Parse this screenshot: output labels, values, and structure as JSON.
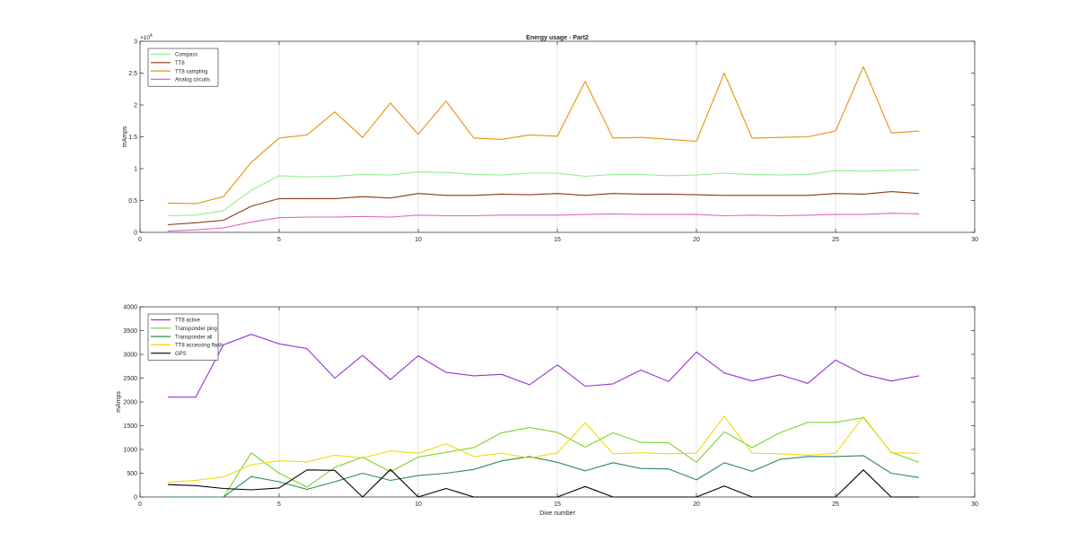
{
  "chart_data": [
    {
      "type": "line",
      "title": "Energy usage - Part2",
      "xlabel": "",
      "ylabel": "mAmps",
      "xlim": [
        0,
        30
      ],
      "ylim": [
        0,
        30000
      ],
      "y_exponent_label": "×10",
      "y_exponent_power": "4",
      "y_tick_scale": 10000,
      "x_ticks": [
        0,
        5,
        10,
        15,
        20,
        25,
        30
      ],
      "y_ticks": [
        0,
        5000,
        10000,
        15000,
        20000,
        25000,
        30000
      ],
      "grid": "x",
      "legend_position": "top-left",
      "x": [
        1,
        2,
        3,
        4,
        5,
        6,
        7,
        8,
        9,
        10,
        11,
        12,
        13,
        14,
        15,
        16,
        17,
        18,
        19,
        20,
        21,
        22,
        23,
        24,
        25,
        26,
        27,
        28
      ],
      "series": [
        {
          "name": "Compass",
          "color": "#90ee90",
          "values": [
            2600,
            2700,
            3400,
            6600,
            8900,
            8700,
            8800,
            9100,
            9000,
            9500,
            9400,
            9100,
            9000,
            9300,
            9300,
            8800,
            9100,
            9100,
            8900,
            9000,
            9300,
            9100,
            9000,
            9100,
            9700,
            9600,
            9700,
            9800
          ]
        },
        {
          "name": "TT8",
          "color": "#8b3a0f",
          "values": [
            1200,
            1500,
            1900,
            4100,
            5300,
            5300,
            5300,
            5600,
            5400,
            6100,
            5800,
            5800,
            6000,
            5900,
            6100,
            5800,
            6100,
            6000,
            6000,
            5900,
            5800,
            5800,
            5800,
            5800,
            6100,
            6000,
            6400,
            6100
          ]
        },
        {
          "name": "TT8 sampling",
          "color": "#e8900c",
          "values": [
            4600,
            4500,
            5600,
            11000,
            14800,
            15300,
            18900,
            14900,
            20300,
            15400,
            20600,
            14800,
            14600,
            15300,
            15100,
            23700,
            14800,
            14900,
            14600,
            14300,
            25000,
            14800,
            14900,
            15000,
            15900,
            26000,
            15600,
            15900
          ]
        },
        {
          "name": "Analog circuits",
          "color": "#e064c0",
          "values": [
            200,
            400,
            700,
            1600,
            2300,
            2400,
            2400,
            2500,
            2400,
            2700,
            2600,
            2600,
            2700,
            2700,
            2700,
            2800,
            2900,
            2800,
            2800,
            2800,
            2600,
            2700,
            2600,
            2700,
            2800,
            2800,
            3000,
            2900
          ]
        }
      ]
    },
    {
      "type": "line",
      "title": "",
      "xlabel": "Dive number",
      "ylabel": "mAmps",
      "xlim": [
        0,
        30
      ],
      "ylim": [
        0,
        4000
      ],
      "x_ticks": [
        0,
        5,
        10,
        15,
        20,
        25,
        30
      ],
      "y_ticks": [
        0,
        500,
        1000,
        1500,
        2000,
        2500,
        3000,
        3500,
        4000
      ],
      "grid": "x",
      "legend_position": "top-left",
      "x": [
        1,
        2,
        3,
        4,
        5,
        6,
        7,
        8,
        9,
        10,
        11,
        12,
        13,
        14,
        15,
        16,
        17,
        18,
        19,
        20,
        21,
        22,
        23,
        24,
        25,
        26,
        27,
        28
      ],
      "series": [
        {
          "name": "TT8 active",
          "color": "#9932cc",
          "values": [
            2100,
            2100,
            3200,
            3420,
            3220,
            3120,
            2500,
            2980,
            2470,
            2970,
            2620,
            2550,
            2580,
            2360,
            2780,
            2330,
            2380,
            2670,
            2430,
            3050,
            2610,
            2440,
            2570,
            2390,
            2880,
            2580,
            2440,
            2550
          ]
        },
        {
          "name": "Transponder ping",
          "color": "#7cd32c",
          "values": [
            0,
            0,
            0,
            930,
            500,
            210,
            620,
            840,
            530,
            840,
            940,
            1040,
            1350,
            1460,
            1360,
            1050,
            1350,
            1150,
            1140,
            730,
            1370,
            1040,
            1350,
            1570,
            1570,
            1670,
            940,
            730
          ]
        },
        {
          "name": "Transponder all",
          "color": "#2e8b57",
          "values": [
            0,
            0,
            0,
            430,
            320,
            160,
            320,
            500,
            350,
            450,
            500,
            580,
            760,
            850,
            730,
            550,
            720,
            600,
            590,
            360,
            720,
            540,
            790,
            850,
            850,
            870,
            500,
            410
          ]
        },
        {
          "name": "TT8 accessing flash",
          "color": "#f5d80a",
          "values": [
            310,
            350,
            420,
            680,
            760,
            740,
            880,
            820,
            970,
            920,
            1120,
            850,
            920,
            820,
            930,
            1560,
            910,
            930,
            910,
            920,
            1700,
            920,
            910,
            880,
            920,
            1690,
            930,
            920
          ]
        },
        {
          "name": "GPS",
          "color": "#000000",
          "values": [
            260,
            240,
            180,
            150,
            190,
            570,
            560,
            0,
            580,
            0,
            180,
            0,
            0,
            0,
            0,
            220,
            0,
            0,
            0,
            0,
            230,
            0,
            0,
            0,
            0,
            570,
            0,
            0
          ]
        }
      ]
    }
  ]
}
